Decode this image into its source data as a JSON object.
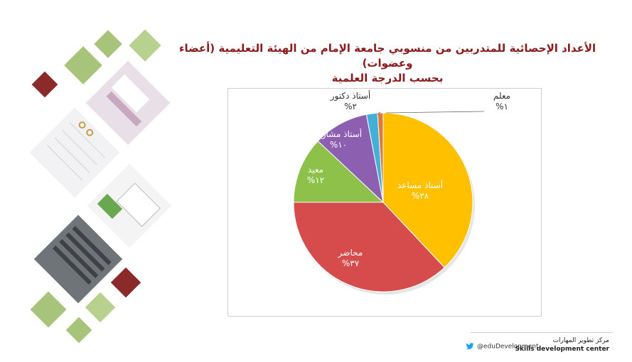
{
  "header": {
    "title_line1": "الأعداد الإحصائية للمتدربين من منسوبي جامعة الإمام من الهيئة التعليمية (أعضاء وعضوات)",
    "title_line2": "بحسب الدرجة العلمية"
  },
  "chart_data": {
    "type": "pie",
    "title": "",
    "slices": [
      {
        "label": "أستاذ مساعد",
        "value": 38,
        "value_label": "%٣٨",
        "color": "#ffc000"
      },
      {
        "label": "محاضر",
        "value": 37,
        "value_label": "%٣٧",
        "color": "#d64c4c"
      },
      {
        "label": "معيد",
        "value": 12,
        "value_label": "%١٢",
        "color": "#8ec14a"
      },
      {
        "label": "أستاذ مشارك",
        "value": 10,
        "value_label": "%١٠",
        "color": "#8c5fb0"
      },
      {
        "label": "أستاذ دكتور",
        "value": 2,
        "value_label": "%٢",
        "color": "#44b0d8"
      },
      {
        "label": "معلم",
        "value": 1,
        "value_label": "%١",
        "color": "#e07a3a"
      }
    ]
  },
  "footer": {
    "org_ar": "مركز تطوير المهارات",
    "org_en": "Skills development center",
    "handle": "@eduDevelopment"
  }
}
